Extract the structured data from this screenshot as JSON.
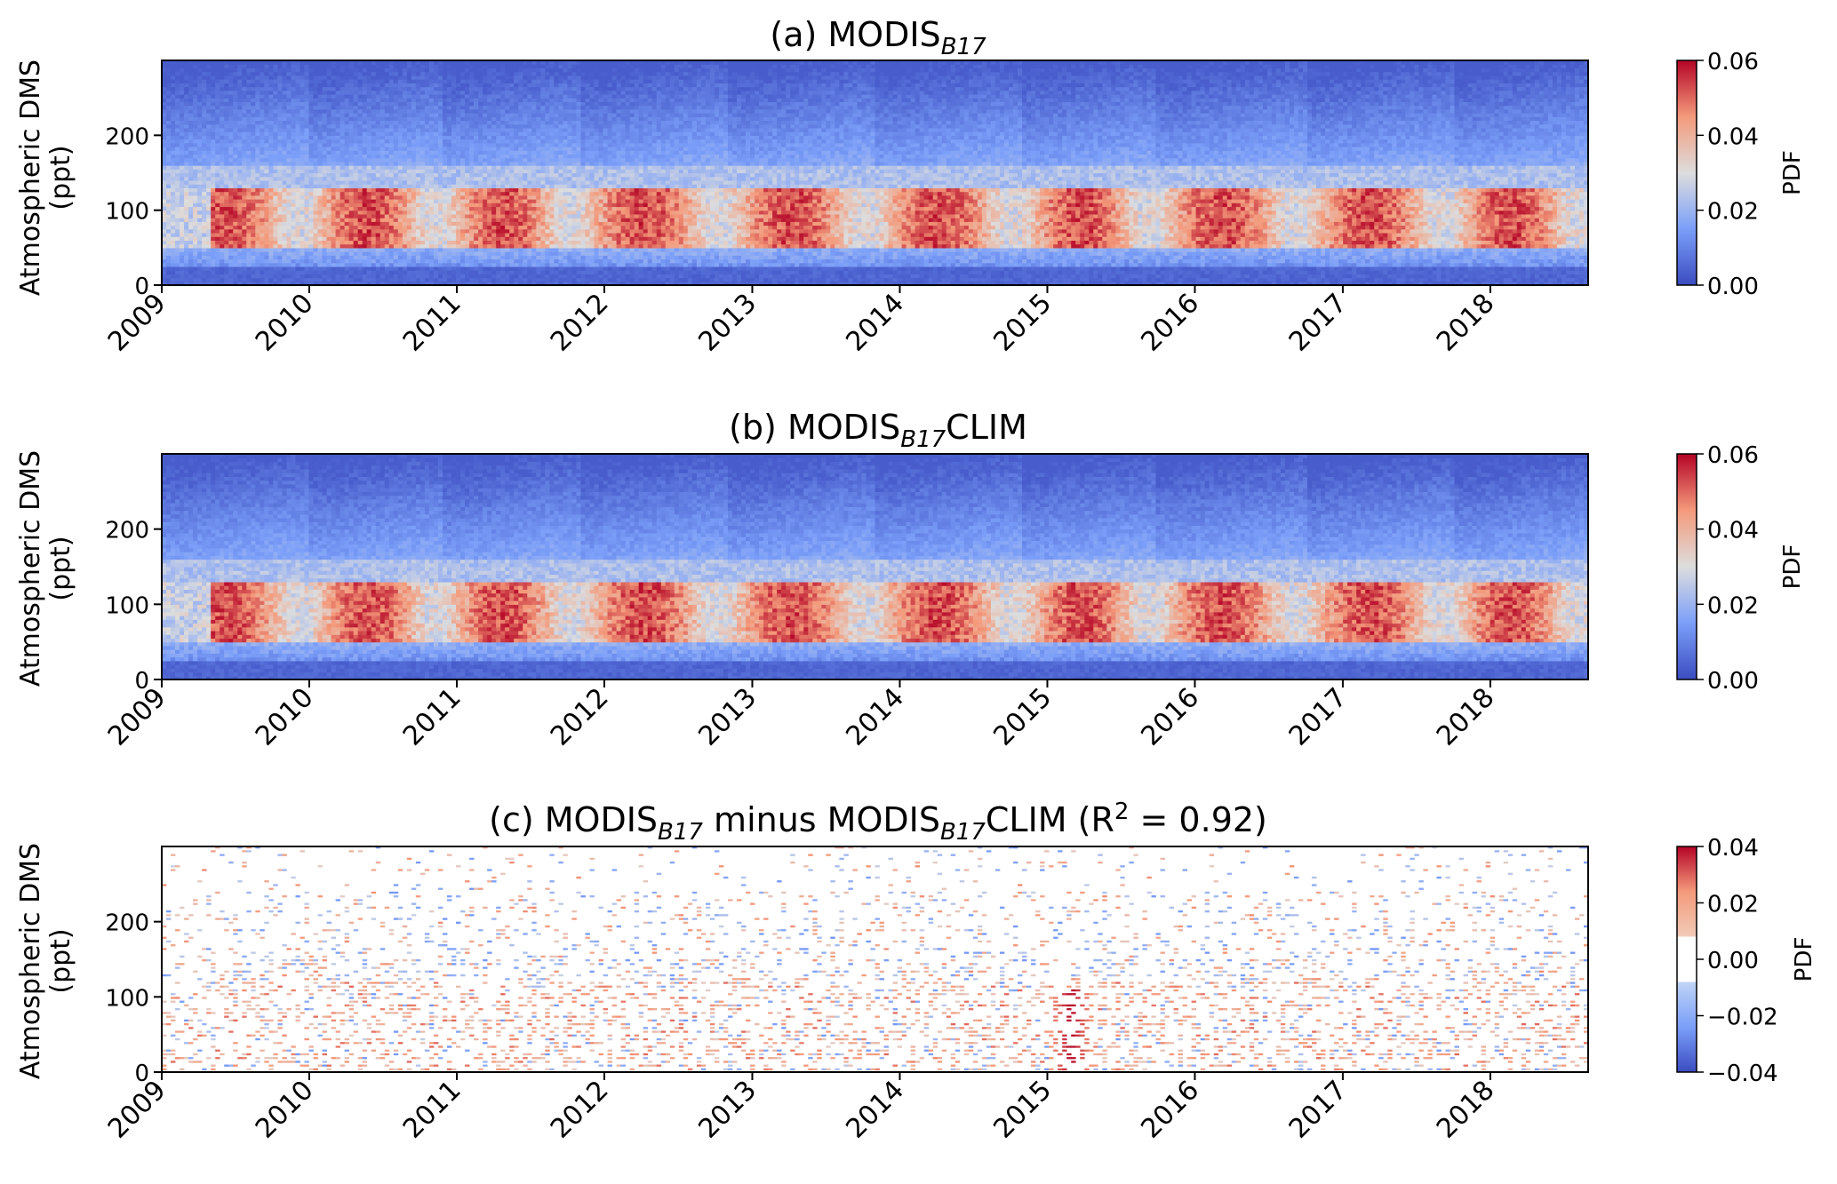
{
  "figure": {
    "panel_count": 3
  },
  "chart_data": [
    {
      "type": "heatmap",
      "title": "(a) MODIS",
      "title_sub": "B17",
      "title_suffix": "",
      "ylabel_line1": "Atmospheric DMS",
      "ylabel_line2": "(ppt)",
      "x_tick_labels": [
        "2009",
        "2010",
        "2011",
        "2012",
        "2013",
        "2014",
        "2015",
        "2016",
        "2017",
        "2018"
      ],
      "x_start_date": "2009-01-01",
      "x_end_date": "2018-08-31",
      "y_ticks": [
        0,
        100,
        200
      ],
      "ylim": [
        0,
        300
      ],
      "colorbar": {
        "label": "PDF",
        "ticks": [
          "0.00",
          "0.02",
          "0.04",
          "0.06"
        ],
        "range": [
          0,
          0.06
        ],
        "colormap": "coolwarm"
      },
      "seasonal_peak_band_ppt": [
        50,
        130
      ],
      "year_segment_breaks": [
        "2009-01-01",
        "2010-01-01",
        "2010-12-01",
        "2011-11-01",
        "2012-11-01",
        "2013-10-31",
        "2014-10-31",
        "2015-10-01",
        "2016-10-01",
        "2017-09-30"
      ],
      "start_gap_date": "2009-05-01"
    },
    {
      "type": "heatmap",
      "title": "(b) MODIS",
      "title_sub": "B17",
      "title_suffix": "CLIM",
      "ylabel_line1": "Atmospheric DMS",
      "ylabel_line2": "(ppt)",
      "x_tick_labels": [
        "2009",
        "2010",
        "2011",
        "2012",
        "2013",
        "2014",
        "2015",
        "2016",
        "2017",
        "2018"
      ],
      "x_start_date": "2009-01-01",
      "x_end_date": "2018-08-31",
      "y_ticks": [
        0,
        100,
        200
      ],
      "ylim": [
        0,
        300
      ],
      "colorbar": {
        "label": "PDF",
        "ticks": [
          "0.00",
          "0.02",
          "0.04",
          "0.06"
        ],
        "range": [
          0,
          0.06
        ],
        "colormap": "coolwarm"
      },
      "seasonal_peak_band_ppt": [
        50,
        130
      ],
      "year_segment_breaks": [
        "2009-01-01",
        "2010-01-01",
        "2010-12-01",
        "2011-11-01",
        "2012-11-01",
        "2013-10-31",
        "2014-10-31",
        "2015-10-01",
        "2016-10-01",
        "2017-09-30"
      ],
      "start_gap_date": "2009-05-01"
    },
    {
      "type": "heatmap",
      "title": "(c) MODIS",
      "title_sub": "B17",
      "title_mid": " minus MODIS",
      "title_sub2": "B17",
      "title_suffix": "CLIM (R",
      "title_sup": "2",
      "title_end": " = 0.92)",
      "ylabel_line1": "Atmospheric DMS",
      "ylabel_line2": "(ppt)",
      "x_tick_labels": [
        "2009",
        "2010",
        "2011",
        "2012",
        "2013",
        "2014",
        "2015",
        "2016",
        "2017",
        "2018"
      ],
      "x_start_date": "2009-01-01",
      "x_end_date": "2018-08-31",
      "y_ticks": [
        0,
        100,
        200
      ],
      "ylim": [
        0,
        300
      ],
      "colorbar": {
        "label": "PDF",
        "ticks": [
          "−0.04",
          "−0.02",
          "0.00",
          "0.02",
          "0.04"
        ],
        "range": [
          -0.04,
          0.04
        ],
        "colormap": "coolwarm_centered_white"
      },
      "r_squared": 0.92,
      "notable_positive_anomaly_date": "2015-03-01",
      "notable_positive_anomaly_ppt": [
        0,
        100
      ]
    }
  ],
  "colors": {
    "low": "#3b4cc0",
    "mid": "#dddddd",
    "high": "#b40426"
  }
}
